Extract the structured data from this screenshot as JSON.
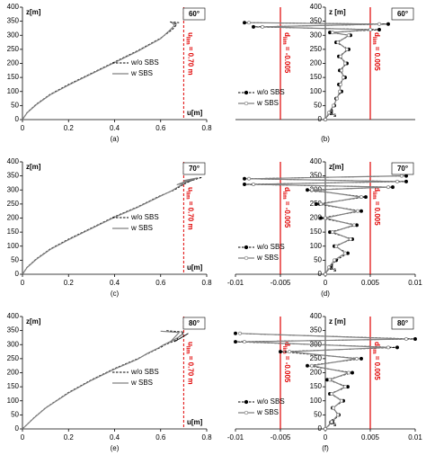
{
  "chart_data": [
    {
      "type": "line",
      "panel_label": "(a)",
      "angle_label": "60°",
      "y_label": "z[m]",
      "x_label": {
        "text": "u[m]"
      },
      "xlim": [
        0,
        0.8
      ],
      "ylim": [
        0,
        400
      ],
      "xticks": [
        0,
        0.2,
        0.4,
        0.6,
        0.8
      ],
      "yticks": [
        0,
        50,
        100,
        150,
        200,
        250,
        300,
        350,
        400
      ],
      "legend": "center right",
      "limits": [
        {
          "value": 0.7,
          "text": "u",
          "sub": "lim",
          "rest": " = 0.70 m"
        }
      ],
      "series": [
        {
          "name": "w/o SBS",
          "color": "#000000",
          "dash": true,
          "x": [
            0,
            0.02,
            0.06,
            0.12,
            0.2,
            0.3,
            0.4,
            0.5,
            0.6,
            0.65,
            0.67,
            0.64,
            0.68
          ],
          "values": [
            0,
            25,
            55,
            90,
            125,
            165,
            205,
            245,
            290,
            320,
            338,
            348,
            345
          ]
        },
        {
          "name": "w SBS",
          "color": "#808080",
          "dash": false,
          "x": [
            0,
            0.02,
            0.06,
            0.12,
            0.2,
            0.3,
            0.4,
            0.5,
            0.6,
            0.64,
            0.66,
            0.65,
            0.67
          ],
          "values": [
            0,
            24,
            53,
            88,
            123,
            163,
            203,
            243,
            288,
            318,
            335,
            345,
            342
          ]
        }
      ]
    },
    {
      "type": "line",
      "panel_label": "(b)",
      "angle_label": "60°",
      "y_label": "z [m]",
      "x_label": {
        "text": "d",
        "sub": "s"
      },
      "xlim": [
        -0.01,
        0.01
      ],
      "ylim": [
        0,
        400
      ],
      "yticks": [
        0,
        50,
        100,
        150,
        200,
        250,
        300,
        350,
        400
      ],
      "legend": "lower left",
      "limits": [
        {
          "value": -0.005,
          "text": "d",
          "sub": "lim",
          "rest": " = -0.005"
        },
        {
          "value": 0.005,
          "text": "d",
          "sub": "lim",
          "rest": " = 0.005"
        }
      ],
      "series": [
        {
          "name": "w/o SBS",
          "color": "#000000",
          "dash": true,
          "marker": "filled",
          "x": [
            0,
            0.0005,
            0.001,
            0.0012,
            0.0018,
            0.0015,
            0.0022,
            0.0016,
            0.0024,
            0.0015,
            0.0026,
            0.0012,
            0.0028,
            0.0005,
            0.006,
            -0.008,
            0.007,
            -0.009
          ],
          "values": [
            0,
            25,
            50,
            75,
            100,
            125,
            150,
            175,
            200,
            225,
            250,
            275,
            300,
            310,
            320,
            330,
            340,
            345
          ]
        },
        {
          "name": "w SBS",
          "color": "#808080",
          "dash": false,
          "marker": "open",
          "x": [
            0,
            0.0004,
            0.0009,
            0.0013,
            0.0016,
            0.0017,
            0.002,
            0.0018,
            0.0022,
            0.0017,
            0.0024,
            0.0014,
            0.0026,
            0.0008,
            0.005,
            -0.007,
            0.006,
            -0.0085
          ],
          "values": [
            0,
            25,
            50,
            75,
            100,
            125,
            150,
            175,
            200,
            225,
            250,
            275,
            300,
            310,
            320,
            330,
            340,
            345
          ]
        }
      ]
    },
    {
      "type": "line",
      "panel_label": "(c)",
      "angle_label": "70°",
      "y_label": "z[m]",
      "x_label": {
        "text": "u[m]"
      },
      "xlim": [
        0,
        0.8
      ],
      "ylim": [
        0,
        400
      ],
      "xticks": [
        0,
        0.2,
        0.4,
        0.6,
        0.8
      ],
      "yticks": [
        0,
        50,
        100,
        150,
        200,
        250,
        300,
        350,
        400
      ],
      "legend": "center right",
      "limits": [
        {
          "value": 0.7,
          "text": "u",
          "sub": "lim",
          "rest": " = 0.70 m"
        }
      ],
      "series": [
        {
          "name": "w/o SBS",
          "color": "#000000",
          "dash": true,
          "x": [
            0,
            0.02,
            0.06,
            0.12,
            0.2,
            0.3,
            0.4,
            0.5,
            0.6,
            0.66,
            0.7,
            0.75,
            0.68,
            0.78,
            0.72
          ],
          "values": [
            0,
            25,
            55,
            90,
            125,
            165,
            205,
            240,
            280,
            300,
            320,
            340,
            320,
            345,
            335
          ]
        },
        {
          "name": "w SBS",
          "color": "#808080",
          "dash": false,
          "x": [
            0,
            0.02,
            0.06,
            0.12,
            0.2,
            0.3,
            0.4,
            0.5,
            0.6,
            0.65,
            0.69,
            0.73,
            0.67,
            0.76,
            0.7
          ],
          "values": [
            0,
            24,
            53,
            88,
            123,
            163,
            203,
            238,
            278,
            298,
            318,
            338,
            318,
            343,
            333
          ]
        }
      ]
    },
    {
      "type": "line",
      "panel_label": "(d)",
      "angle_label": "70°",
      "y_label": "z[m]",
      "x_label": {
        "text": "d",
        "sub": "s"
      },
      "xlim": [
        -0.01,
        0.01
      ],
      "ylim": [
        0,
        400
      ],
      "xticks": [
        -0.01,
        -0.005,
        0,
        0.005,
        0.01
      ],
      "yticks": [
        0,
        50,
        100,
        150,
        200,
        250,
        300,
        350,
        400
      ],
      "legend": "lower left",
      "limits": [
        {
          "value": -0.005,
          "text": "d",
          "sub": "lim",
          "rest": " = -0.005"
        },
        {
          "value": 0.005,
          "text": "d",
          "sub": "lim",
          "rest": " = 0.005"
        }
      ],
      "series": [
        {
          "name": "w/o SBS",
          "color": "#000000",
          "dash": true,
          "marker": "filled",
          "x": [
            0,
            0.0005,
            0.0012,
            0.0025,
            0.001,
            0.003,
            0.0005,
            0.0035,
            -0.0005,
            0.004,
            -0.001,
            0.0045,
            -0.002,
            0.0075,
            -0.009,
            0.009,
            -0.009,
            0.009
          ],
          "values": [
            0,
            25,
            50,
            75,
            100,
            125,
            150,
            175,
            200,
            225,
            250,
            275,
            300,
            310,
            320,
            330,
            340,
            350
          ]
        },
        {
          "name": "w SBS",
          "color": "#808080",
          "dash": false,
          "marker": "open",
          "x": [
            0,
            0.0004,
            0.001,
            0.0022,
            0.0012,
            0.0028,
            0.0008,
            0.0032,
            0,
            0.0036,
            -0.0005,
            0.004,
            -0.0015,
            0.007,
            -0.008,
            0.008,
            -0.0085,
            0.0085
          ],
          "values": [
            0,
            25,
            50,
            75,
            100,
            125,
            150,
            175,
            200,
            225,
            250,
            275,
            300,
            310,
            320,
            330,
            340,
            350
          ]
        }
      ]
    },
    {
      "type": "line",
      "panel_label": "(e)",
      "angle_label": "80°",
      "y_label": "z[m]",
      "x_label": {
        "text": "u[m]"
      },
      "xlim": [
        0,
        0.8
      ],
      "ylim": [
        0,
        400
      ],
      "xticks": [
        0,
        0.2,
        0.4,
        0.6,
        0.8
      ],
      "yticks": [
        0,
        50,
        100,
        150,
        200,
        250,
        300,
        350,
        400
      ],
      "legend": "center right",
      "limits": [
        {
          "value": 0.7,
          "text": "u",
          "sub": "lim",
          "rest": " = 0.70 m"
        }
      ],
      "series": [
        {
          "name": "w/o SBS",
          "color": "#000000",
          "dash": true,
          "x": [
            0,
            0.05,
            0.1,
            0.2,
            0.3,
            0.4,
            0.5,
            0.55,
            0.6,
            0.62,
            0.68,
            0.72,
            0.66,
            0.7,
            0.62
          ],
          "values": [
            0,
            40,
            75,
            130,
            175,
            215,
            250,
            270,
            290,
            300,
            320,
            340,
            310,
            345,
            350
          ]
        },
        {
          "name": "w SBS",
          "color": "#808080",
          "dash": false,
          "x": [
            0,
            0.05,
            0.1,
            0.2,
            0.3,
            0.4,
            0.5,
            0.54,
            0.59,
            0.61,
            0.66,
            0.7,
            0.64,
            0.68,
            0.6
          ],
          "values": [
            0,
            39,
            74,
            128,
            173,
            213,
            248,
            268,
            288,
            298,
            318,
            338,
            308,
            343,
            348
          ]
        }
      ]
    },
    {
      "type": "line",
      "panel_label": "(f)",
      "angle_label": "80°",
      "y_label": "z [m]",
      "x_label": {
        "text": "d",
        "sub": "s"
      },
      "xlim": [
        -0.01,
        0.01
      ],
      "ylim": [
        0,
        400
      ],
      "xticks": [
        -0.01,
        -0.005,
        0,
        0.005,
        0.01
      ],
      "yticks": [
        0,
        50,
        100,
        150,
        200,
        250,
        300,
        350,
        400
      ],
      "legend": "lower left",
      "limits": [
        {
          "value": -0.005,
          "text": "d",
          "sub": "lim",
          "rest": " = -0.005"
        },
        {
          "value": 0.005,
          "text": "d",
          "sub": "lim",
          "rest": " = 0.005"
        }
      ],
      "series": [
        {
          "name": "w/o SBS",
          "color": "#000000",
          "dash": true,
          "marker": "filled",
          "x": [
            0,
            0.0008,
            0.0015,
            0.0008,
            0.002,
            0.0005,
            0.0025,
            0.0002,
            0.003,
            -0.002,
            0.004,
            -0.005,
            0.008,
            -0.01,
            0.01,
            -0.01
          ],
          "values": [
            0,
            25,
            50,
            75,
            100,
            125,
            150,
            175,
            200,
            225,
            250,
            275,
            290,
            310,
            320,
            340
          ]
        },
        {
          "name": "w SBS",
          "color": "#808080",
          "dash": false,
          "marker": "open",
          "x": [
            0,
            0.0007,
            0.0014,
            0.0009,
            0.0018,
            0.0007,
            0.0022,
            0.0005,
            0.0026,
            -0.0015,
            0.0035,
            -0.004,
            0.007,
            -0.009,
            0.009,
            -0.0095
          ],
          "values": [
            0,
            25,
            50,
            75,
            100,
            125,
            150,
            175,
            200,
            225,
            250,
            275,
            290,
            310,
            320,
            340
          ]
        }
      ]
    }
  ]
}
